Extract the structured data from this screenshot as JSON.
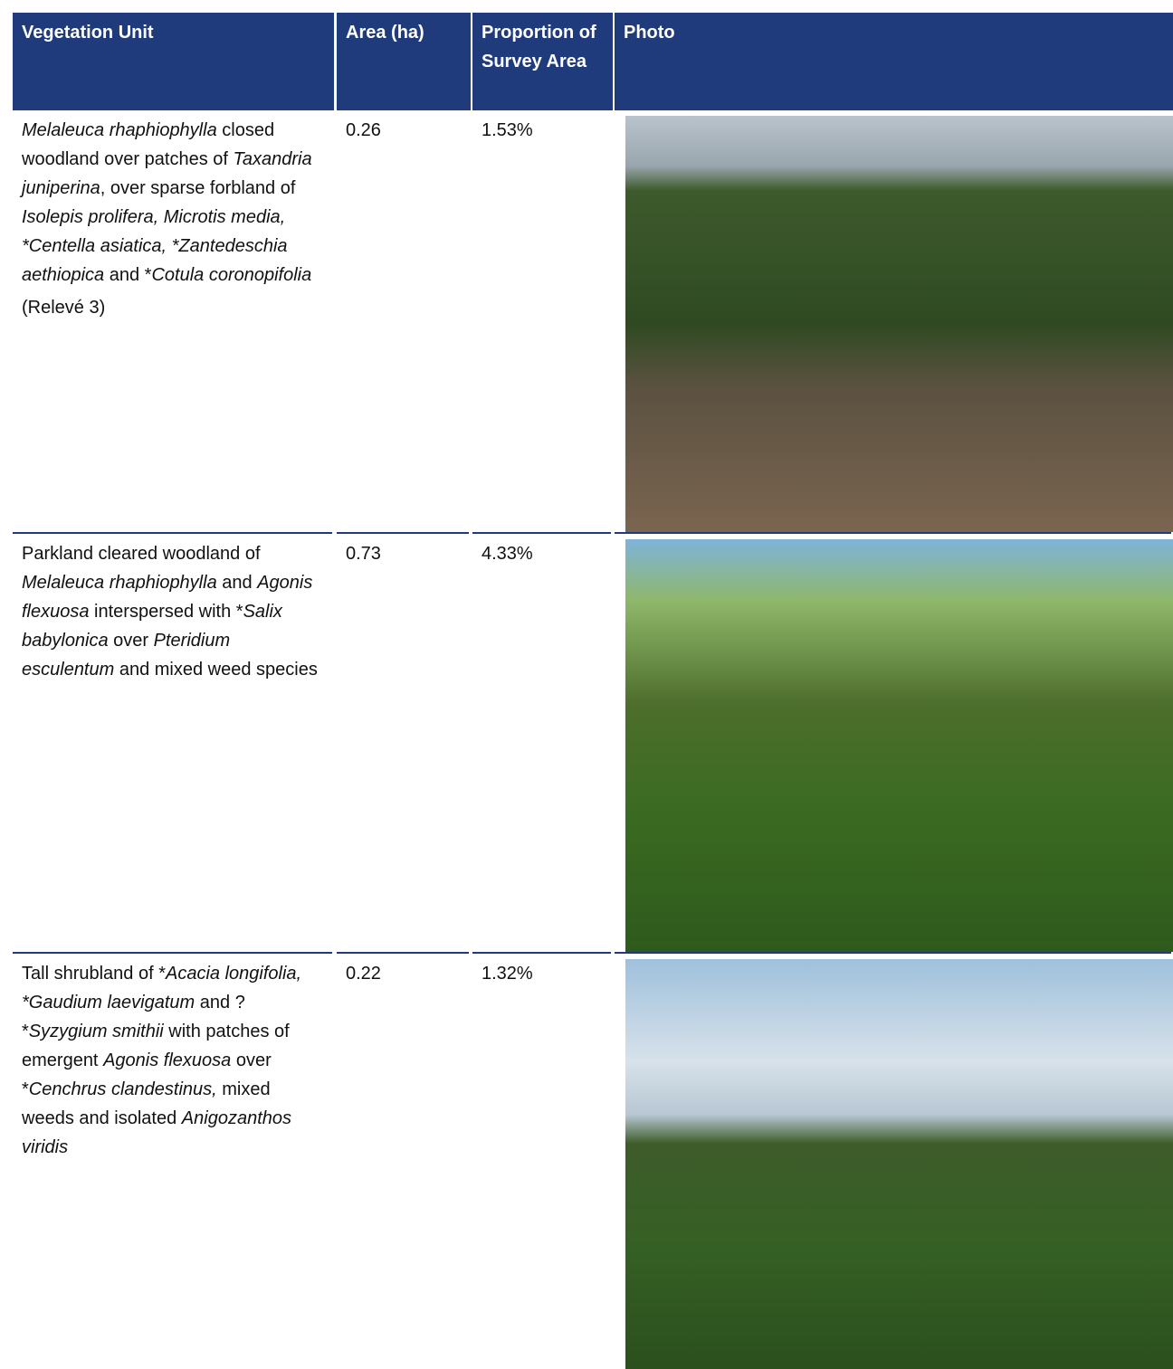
{
  "table": {
    "header": [
      "Vegetation Unit",
      "Area (ha)",
      "Proportion of Survey Area",
      "Photo"
    ],
    "rows": [
      {
        "description": [
          {
            "italic": "Melaleuca rhaphiophylla"
          },
          " closed woodland over patches of ",
          {
            "italic": "Taxandria juniperina"
          },
          ", over sparse forbland of ",
          {
            "italic": "Isolepis prolifera, Microtis media, *Centella asiatica, *Zantedeschia aethiopica"
          },
          " and *",
          {
            "italic": "Cotula coronopifolia"
          }
        ],
        "note": "(Relevé 3)",
        "area": "0.26",
        "proportion": "1.53%"
      },
      {
        "description": [
          "Parkland cleared woodland of ",
          {
            "italic": "Melaleuca rhaphiophylla"
          },
          " and ",
          {
            "italic": "Agonis flexuosa"
          },
          " interspersed with *",
          {
            "italic": "Salix babylonica"
          },
          " over ",
          {
            "italic": "Pteridium esculentum"
          },
          " and mixed weed species"
        ],
        "area": "0.73",
        "proportion": "4.33%"
      },
      {
        "description": [
          "Tall shrubland of *",
          {
            "italic": "Acacia longifolia, *Gaudium laevigatum"
          },
          " and ?*",
          {
            "italic": "Syzygium smithii"
          },
          " with patches of emergent ",
          {
            "italic": "Agonis flexuosa"
          },
          " over *",
          {
            "italic": "Cenchrus clandestinus,"
          },
          " mixed weeds and isolated ",
          {
            "italic": "Anigozanthos viridis"
          }
        ],
        "area": "0.22",
        "proportion": "1.32%"
      }
    ]
  }
}
